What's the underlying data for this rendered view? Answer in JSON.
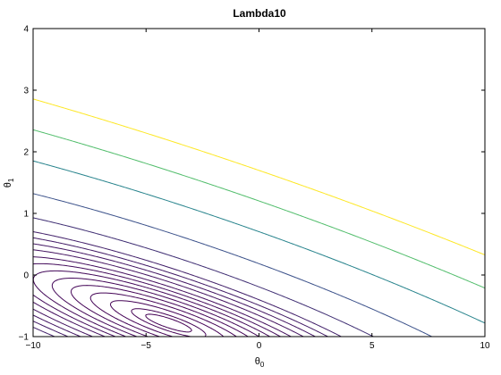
{
  "chart_data": {
    "type": "contour",
    "title": "Lambda10",
    "xlabel": {
      "base": "θ",
      "sub": "0"
    },
    "ylabel": {
      "base": "θ",
      "sub": "1"
    },
    "xlim": [
      -10,
      10
    ],
    "ylim": [
      -1,
      4
    ],
    "xticks": [
      -10,
      -5,
      0,
      5,
      10
    ],
    "xtick_labels": [
      "−10",
      "−5",
      "0",
      "5",
      "10"
    ],
    "yticks": [
      -1,
      0,
      1,
      2,
      3,
      4
    ],
    "ytick_labels": [
      "−1",
      "0",
      "1",
      "2",
      "3",
      "4"
    ],
    "grid": false,
    "colormap": "viridis",
    "colormap_stops": [
      "#440154",
      "#3b528b",
      "#21918c",
      "#5ec962",
      "#fde725"
    ],
    "contour_model": {
      "form": "z = a*(t0 - c0)^2 + 2*b*(t0 - c0)*(t1 - c1) + c*(t1 - c1)^2",
      "center": [
        -4.0,
        -0.78
      ],
      "a": 1.0,
      "b": 5.9,
      "c": 50.0
    },
    "levels": [
      0.32,
      0.83,
      2.02,
      3.64,
      5.67,
      8.08,
      10.9,
      14.1,
      17.7,
      22.5,
      27.7,
      33.8,
      41.0,
      61.0,
      108.0,
      196.0,
      306.0,
      440.0
    ],
    "levels_note_color_max": 440.0
  }
}
